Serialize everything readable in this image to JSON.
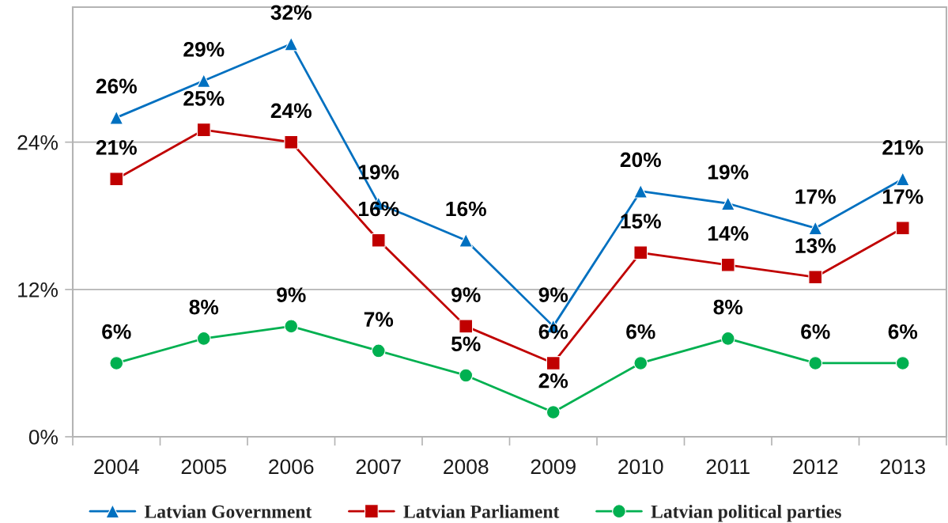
{
  "chart_data": {
    "type": "line",
    "categories": [
      "2004",
      "2005",
      "2006",
      "2007",
      "2008",
      "2009",
      "2010",
      "2011",
      "2012",
      "2013"
    ],
    "ylim": [
      0,
      35
    ],
    "yticks": [
      {
        "value": 0,
        "label": "0%"
      },
      {
        "value": 12,
        "label": "12%"
      },
      {
        "value": 24,
        "label": "24%"
      }
    ],
    "grid": "y",
    "legend": "bottom",
    "line_style": "solid",
    "series": [
      {
        "name": "Latvian Government",
        "color": "#0070c0",
        "marker": "triangle",
        "values": [
          26,
          29,
          32,
          19,
          16,
          9,
          20,
          19,
          17,
          21
        ],
        "value_labels": [
          "26%",
          "29%",
          "32%",
          "19%",
          "16%",
          "9%",
          "20%",
          "19%",
          "17%",
          "21%"
        ]
      },
      {
        "name": "Latvian Parliament",
        "color": "#c00000",
        "marker": "square",
        "values": [
          21,
          25,
          24,
          16,
          9,
          6,
          15,
          14,
          13,
          17
        ],
        "value_labels": [
          "21%",
          "25%",
          "24%",
          "16%",
          "9%",
          "6%",
          "15%",
          "14%",
          "13%",
          "17%"
        ]
      },
      {
        "name": "Latvian political parties",
        "color": "#00b050",
        "marker": "circle",
        "values": [
          6,
          8,
          9,
          7,
          5,
          2,
          6,
          8,
          6,
          6
        ],
        "value_labels": [
          "6%",
          "8%",
          "9%",
          "7%",
          "5%",
          "2%",
          "6%",
          "8%",
          "6%",
          "6%"
        ]
      }
    ]
  }
}
